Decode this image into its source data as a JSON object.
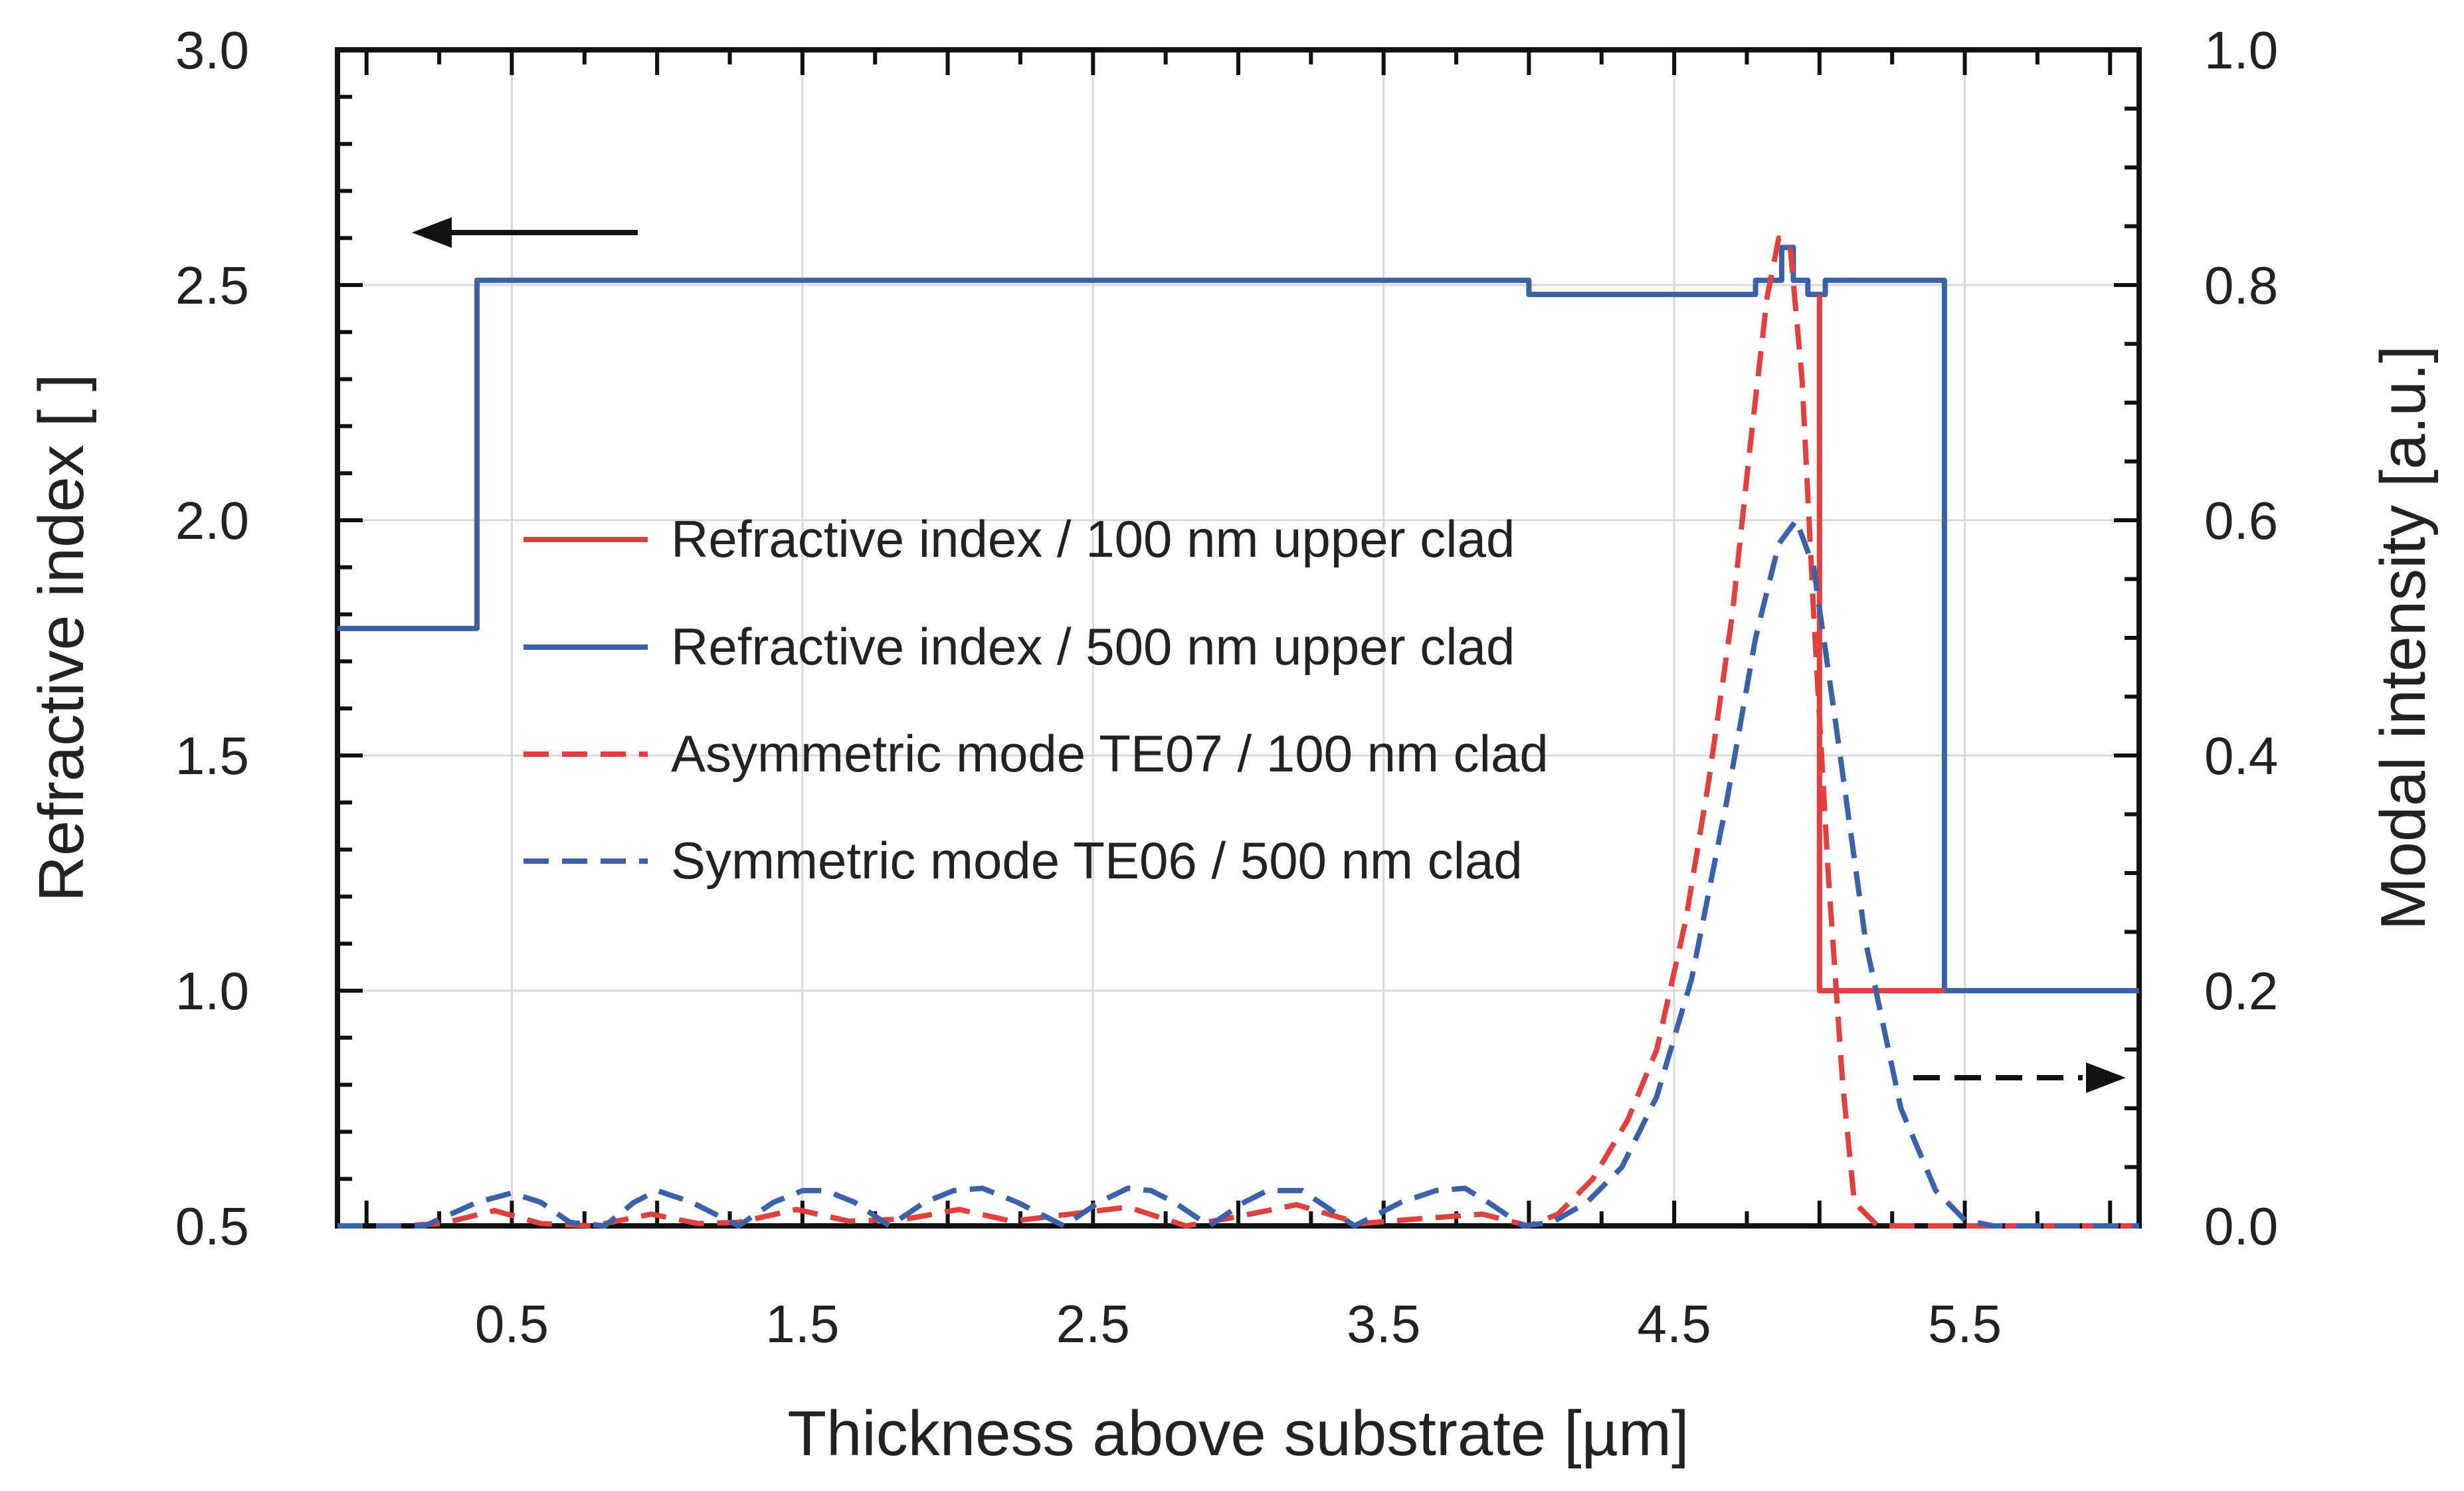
{
  "chart_data": {
    "type": "line",
    "title": "",
    "xlabel": "Thickness above substrate [µm]",
    "ylabel_left": "Refractive index [ ]",
    "ylabel_right": "Modal intensity [a.u.]",
    "xlim": [
      -0.1,
      6.1
    ],
    "ylim_left": [
      0.5,
      3.0
    ],
    "ylim_right": [
      0.0,
      1.0
    ],
    "grid": true,
    "x_ticks": [
      0.5,
      1.5,
      2.5,
      3.5,
      4.5,
      5.5
    ],
    "x_tick_labels": [
      "0.5",
      "1.5",
      "2.5",
      "3.5",
      "4.5",
      "5.5"
    ],
    "y_left_ticks": [
      0.5,
      1.0,
      1.5,
      2.0,
      2.5,
      3.0
    ],
    "y_left_tick_labels": [
      "0.5",
      "1.0",
      "1.5",
      "2.0",
      "2.5",
      "3.0"
    ],
    "y_right_ticks": [
      0.0,
      0.2,
      0.4,
      0.6,
      0.8,
      1.0
    ],
    "y_right_tick_labels": [
      "0.0",
      "0.2",
      "0.4",
      "0.6",
      "0.8",
      "1.0"
    ],
    "legend_position": "center-left",
    "series": [
      {
        "name": "Refractive index / 500 nm upper clad",
        "axis": "left",
        "color": "#3b62a8",
        "dash": "solid",
        "x": [
          -0.1,
          0.38,
          0.38,
          4.0,
          4.0,
          4.78,
          4.78,
          4.87,
          4.87,
          4.91,
          4.91,
          4.96,
          4.96,
          5.02,
          5.02,
          5.43,
          5.43,
          5.52,
          5.52,
          6.1
        ],
        "y": [
          1.77,
          1.77,
          2.51,
          2.51,
          2.48,
          2.48,
          2.51,
          2.51,
          2.58,
          2.58,
          2.51,
          2.51,
          2.48,
          2.48,
          2.51,
          2.51,
          1.0,
          1.0,
          1.0,
          1.0
        ]
      },
      {
        "name": "Refractive index / 100 nm upper clad",
        "axis": "left",
        "color": "#e0403e",
        "dash": "solid",
        "x": [
          5.0,
          5.0,
          5.43
        ],
        "y": [
          2.48,
          1.0,
          1.0
        ]
      },
      {
        "name": "Asymmetric mode TE07 / 100 nm clad",
        "axis": "right",
        "color": "#e0403e",
        "dash": "dashed",
        "x": [
          -0.1,
          0.0,
          0.12,
          0.26,
          0.44,
          0.6,
          0.78,
          0.98,
          1.14,
          1.28,
          1.48,
          1.66,
          1.86,
          2.04,
          2.22,
          2.42,
          2.62,
          2.82,
          3.0,
          3.2,
          3.42,
          3.62,
          3.84,
          4.0,
          4.1,
          4.22,
          4.34,
          4.44,
          4.54,
          4.62,
          4.7,
          4.76,
          4.82,
          4.86,
          4.9,
          4.94,
          4.98,
          5.03,
          5.08,
          5.12,
          5.2,
          5.4,
          5.8,
          6.1
        ],
        "y": [
          0.0,
          0.0,
          0.0,
          0.002,
          0.013,
          0.002,
          0.0,
          0.01,
          0.002,
          0.003,
          0.014,
          0.004,
          0.006,
          0.014,
          0.004,
          0.01,
          0.016,
          0.0,
          0.008,
          0.018,
          0.002,
          0.006,
          0.01,
          0.0,
          0.01,
          0.04,
          0.09,
          0.15,
          0.26,
          0.38,
          0.52,
          0.66,
          0.79,
          0.84,
          0.83,
          0.72,
          0.52,
          0.3,
          0.12,
          0.02,
          0.0,
          0.0,
          0.0,
          0.0
        ]
      },
      {
        "name": "Symmetric mode TE06 / 500 nm clad",
        "axis": "right",
        "color": "#3b62a8",
        "dash": "dashed",
        "x": [
          -0.1,
          0.2,
          0.38,
          0.5,
          0.6,
          0.7,
          0.82,
          0.92,
          1.0,
          1.12,
          1.28,
          1.4,
          1.5,
          1.58,
          1.68,
          1.8,
          1.92,
          2.02,
          2.12,
          2.24,
          2.4,
          2.52,
          2.62,
          2.7,
          2.78,
          2.9,
          3.02,
          3.1,
          3.22,
          3.4,
          3.56,
          3.68,
          3.78,
          3.86,
          3.98,
          4.08,
          4.2,
          4.32,
          4.44,
          4.56,
          4.68,
          4.78,
          4.86,
          4.92,
          4.98,
          5.06,
          5.16,
          5.28,
          5.4,
          5.5,
          5.6,
          6.1
        ],
        "y": [
          0.0,
          0.0,
          0.02,
          0.028,
          0.02,
          0.003,
          0.0,
          0.02,
          0.03,
          0.02,
          0.0,
          0.02,
          0.03,
          0.03,
          0.02,
          0.0,
          0.02,
          0.03,
          0.032,
          0.02,
          0.0,
          0.02,
          0.032,
          0.03,
          0.02,
          0.0,
          0.02,
          0.03,
          0.03,
          0.0,
          0.02,
          0.03,
          0.032,
          0.02,
          0.0,
          0.003,
          0.02,
          0.05,
          0.11,
          0.21,
          0.36,
          0.5,
          0.58,
          0.6,
          0.56,
          0.42,
          0.24,
          0.1,
          0.03,
          0.005,
          0.0,
          0.0
        ]
      }
    ]
  }
}
